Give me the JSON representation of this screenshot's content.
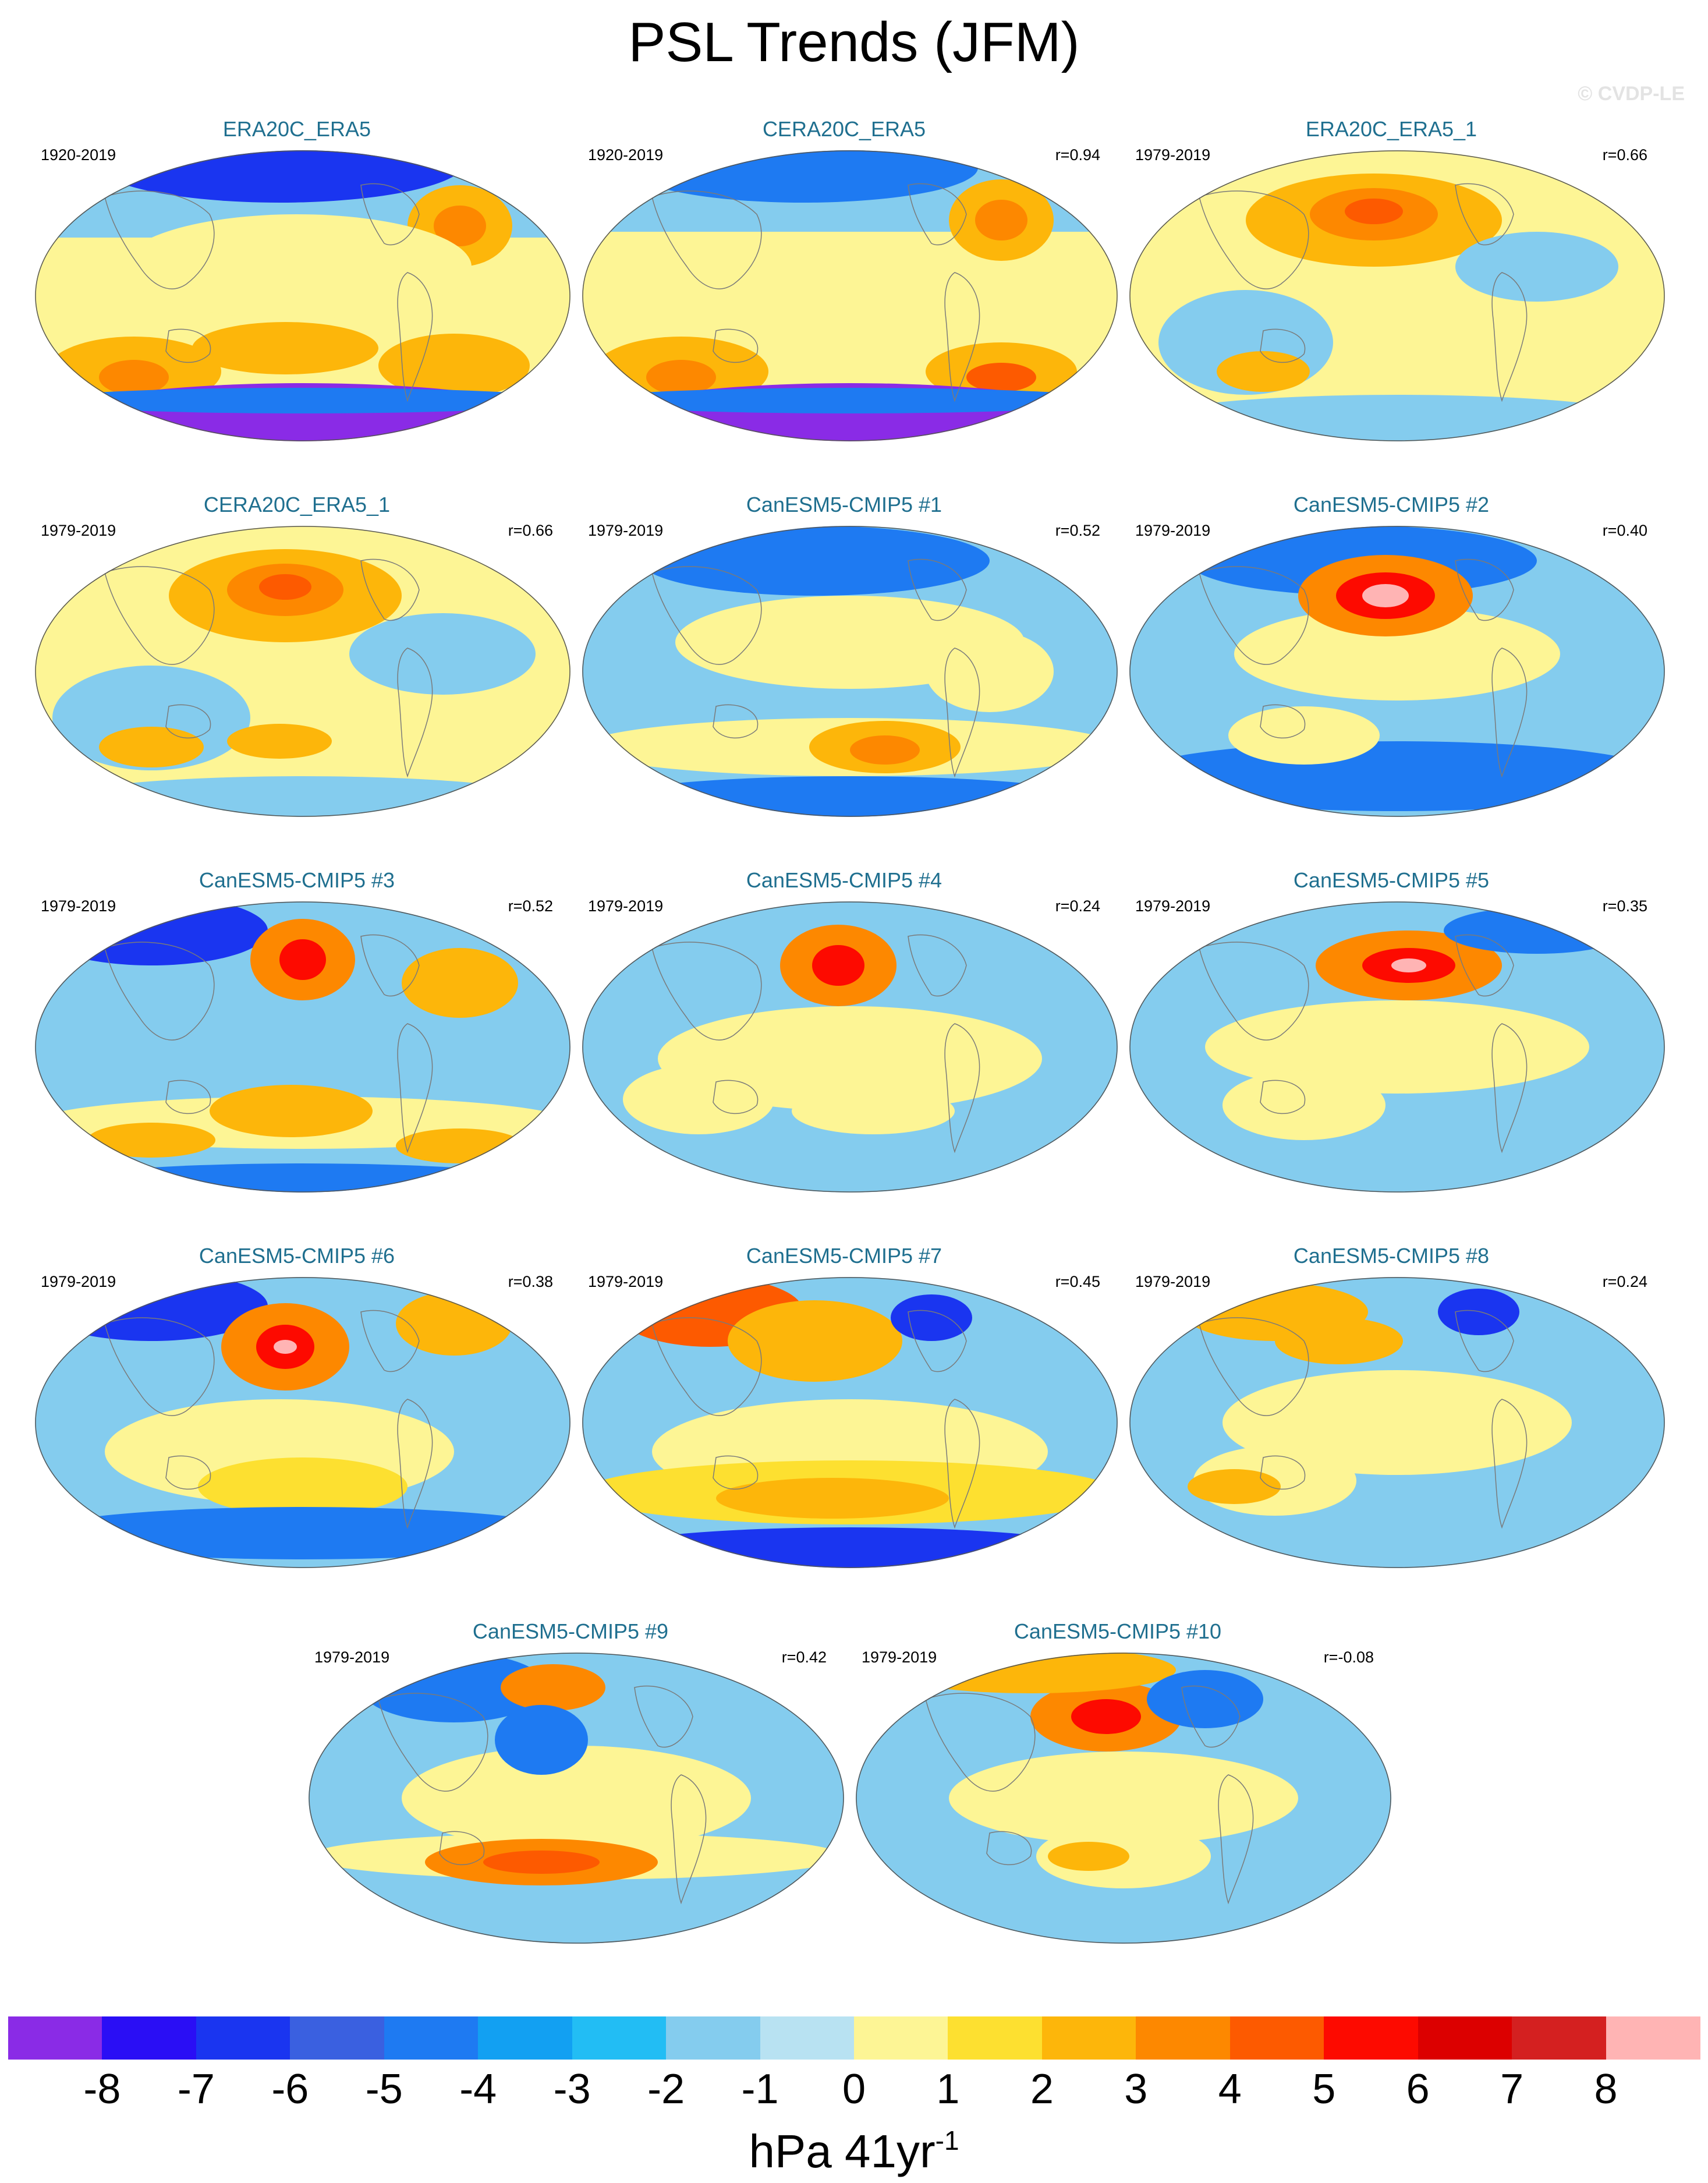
{
  "title": "PSL Trends (JFM)",
  "credit": "© CVDP-LE",
  "colorbar": {
    "units": "hPa 41yr",
    "units_exponent": "-1",
    "tick_labels": [
      "-8",
      "-7",
      "-6",
      "-5",
      "-4",
      "-3",
      "-2",
      "-1",
      "0",
      "1",
      "2",
      "3",
      "4",
      "5",
      "6",
      "7",
      "8"
    ],
    "colors": [
      "#8a2be6",
      "#2a0ef5",
      "#1a35f0",
      "#3a60e0",
      "#1e7af2",
      "#12a0f2",
      "#22bdf4",
      "#84ccee",
      "#b8e2f2",
      "#fdf595",
      "#fde030",
      "#fdb60a",
      "#fd8800",
      "#fd5a00",
      "#fd0a00",
      "#dc0000",
      "#d42020",
      "#ffb4b4"
    ]
  },
  "panels": [
    {
      "title": "ERA20C_ERA5",
      "years": "1920-2019",
      "r": ""
    },
    {
      "title": "CERA20C_ERA5",
      "years": "1920-2019",
      "r": "r=0.94"
    },
    {
      "title": "ERA20C_ERA5_1",
      "years": "1979-2019",
      "r": "r=0.66"
    },
    {
      "title": "CERA20C_ERA5_1",
      "years": "1979-2019",
      "r": "r=0.66"
    },
    {
      "title": "CanESM5-CMIP5 #1",
      "years": "1979-2019",
      "r": "r=0.52"
    },
    {
      "title": "CanESM5-CMIP5 #2",
      "years": "1979-2019",
      "r": "r=0.40"
    },
    {
      "title": "CanESM5-CMIP5 #3",
      "years": "1979-2019",
      "r": "r=0.52"
    },
    {
      "title": "CanESM5-CMIP5 #4",
      "years": "1979-2019",
      "r": "r=0.24"
    },
    {
      "title": "CanESM5-CMIP5 #5",
      "years": "1979-2019",
      "r": "r=0.35"
    },
    {
      "title": "CanESM5-CMIP5 #6",
      "years": "1979-2019",
      "r": "r=0.38"
    },
    {
      "title": "CanESM5-CMIP5 #7",
      "years": "1979-2019",
      "r": "r=0.45"
    },
    {
      "title": "CanESM5-CMIP5 #8",
      "years": "1979-2019",
      "r": "r=0.24"
    },
    {
      "title": "CanESM5-CMIP5 #9",
      "years": "1979-2019",
      "r": "r=0.42"
    },
    {
      "title": "CanESM5-CMIP5 #10",
      "years": "1979-2019",
      "r": "r=-0.08"
    }
  ]
}
